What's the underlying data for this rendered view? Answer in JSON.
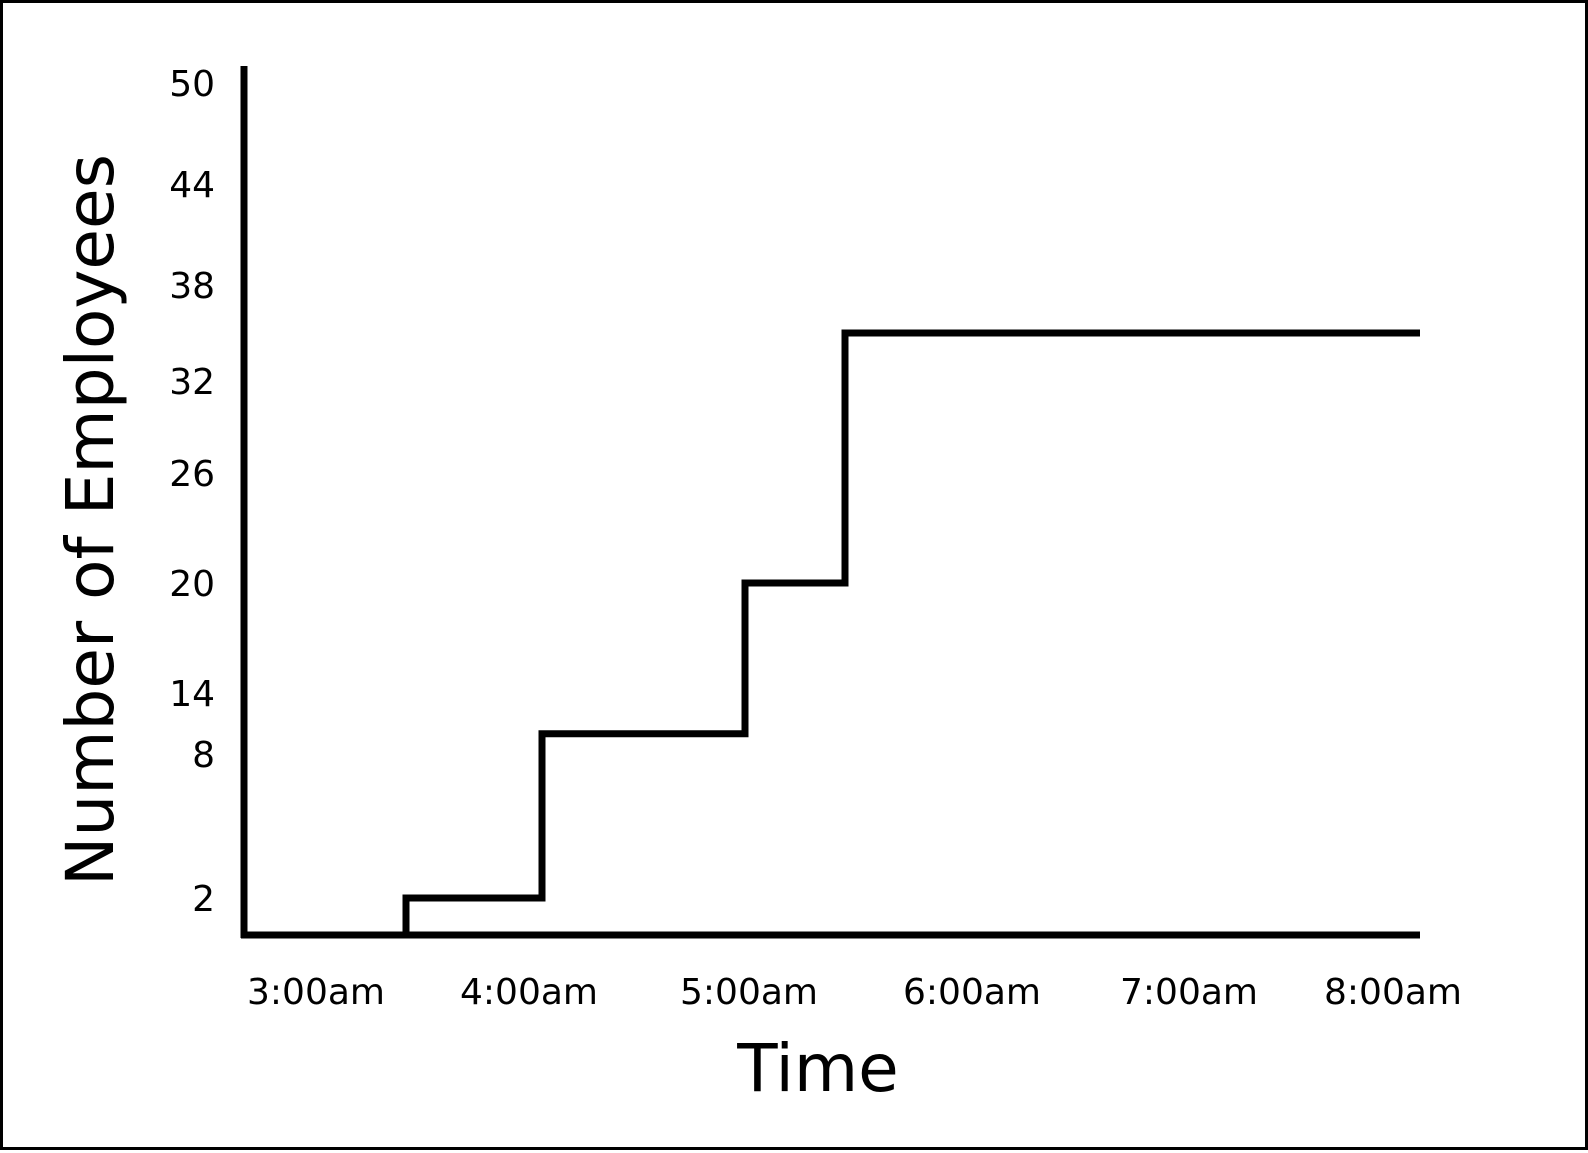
{
  "chart_data": {
    "type": "line",
    "step": true,
    "xlabel": "Time",
    "ylabel": "Number of Employees",
    "x_ticks": [
      "3:00am",
      "4:00am",
      "5:00am",
      "6:00am",
      "7:00am",
      "8:00am"
    ],
    "y_ticks": [
      "2",
      "8",
      "14",
      "20",
      "26",
      "32",
      "38",
      "44",
      "50"
    ],
    "series": [
      {
        "x": [
          "3:00am",
          "3:45am",
          "3:45am",
          "4:20am",
          "4:20am",
          "5:15am",
          "5:15am",
          "5:40am",
          "5:40am",
          "8:10am"
        ],
        "values": [
          0,
          0,
          2,
          2,
          10,
          10,
          20,
          20,
          35,
          35
        ]
      }
    ],
    "xlim": [
      "3:00am",
      "8:10am"
    ],
    "ylim": [
      0,
      50
    ],
    "grid": false,
    "legend": "none",
    "line_color": "#000000"
  }
}
